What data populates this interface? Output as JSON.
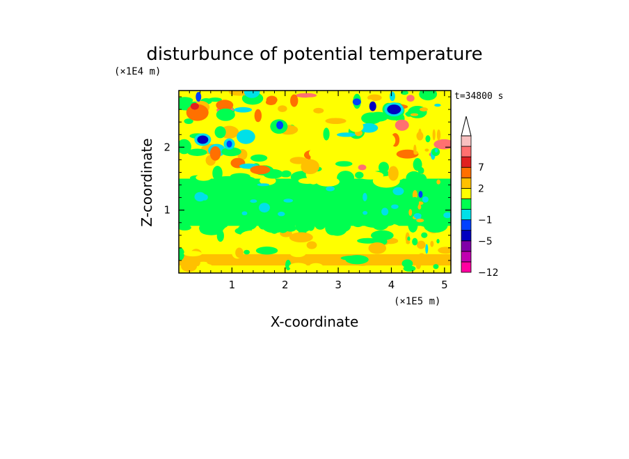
{
  "chart_data": {
    "type": "heatmap",
    "title": "disturbunce of potential temperature",
    "time_label": "t=34800 s",
    "xlabel": "X-coordinate",
    "ylabel": "Z-coordinate",
    "x_unit": "(×1E5 m)",
    "y_unit": "(×1E4 m)",
    "xlim": [
      0,
      5.12
    ],
    "ylim": [
      0,
      2.9
    ],
    "x_ticks": [
      "1",
      "2",
      "3",
      "4",
      "5"
    ],
    "y_ticks": [
      "1",
      "2"
    ],
    "colorbar": {
      "tick_labels": [
        "7",
        "2",
        "−1",
        "−5",
        "−12"
      ],
      "levels": [
        -12,
        -10,
        -8,
        -5,
        -3,
        -1,
        0,
        1,
        2,
        4,
        7,
        10
      ],
      "colors": [
        "#ff00a0",
        "#c000b0",
        "#8000a8",
        "#0000c0",
        "#0040ff",
        "#00e0e8",
        "#00ff50",
        "#ffff00",
        "#ffc000",
        "#ff7000",
        "#e02020",
        "#ff7070",
        "#f8c0c0"
      ],
      "extends_max": true
    },
    "bands": [
      {
        "z0": 0.0,
        "z1": 0.12,
        "level": "yellow"
      },
      {
        "z0": 0.12,
        "z1": 0.3,
        "level": "orange"
      },
      {
        "z0": 0.3,
        "z1": 0.75,
        "level": "yellow"
      },
      {
        "z0": 0.75,
        "z1": 1.5,
        "level": "green"
      },
      {
        "z0": 1.5,
        "z1": 2.0,
        "level": "yellow"
      },
      {
        "z0": 2.0,
        "z1": 2.9,
        "level": "mixed"
      }
    ]
  }
}
